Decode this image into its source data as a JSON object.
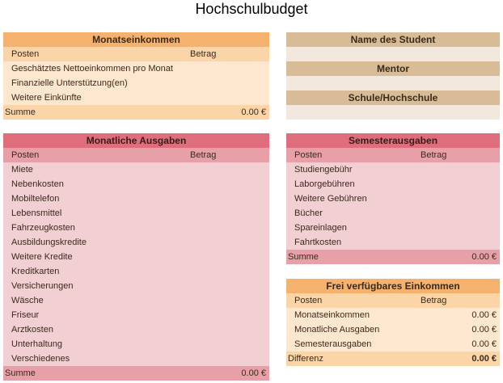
{
  "title": "Hochschulbudget",
  "income": {
    "header": "Monatseinkommen",
    "col_item": "Posten",
    "col_amount": "Betrag",
    "rows": [
      "Geschätztes Nettoeinkommen pro Monat",
      "Finanzielle Unterstützung(en)",
      "Weitere Einkünfte"
    ],
    "sum_label": "Summe",
    "sum_value": "0.00 €"
  },
  "info": {
    "student_label": "Name des Student",
    "mentor_label": "Mentor",
    "school_label": "Schule/Hochschule"
  },
  "expenses": {
    "header": "Monatliche Ausgaben",
    "col_item": "Posten",
    "col_amount": "Betrag",
    "rows": [
      "Miete",
      "Nebenkosten",
      "Mobiltelefon",
      "Lebensmittel",
      "Fahrzeugkosten",
      "Ausbildungskredite",
      "Weitere Kredite",
      "Kreditkarten",
      "Versicherungen",
      "Wäsche",
      "Friseur",
      "Arztkosten",
      "Unterhaltung",
      "Verschiedenes"
    ],
    "sum_label": "Summe",
    "sum_value": "0.00 €"
  },
  "semester": {
    "header": "Semesterausgaben",
    "col_item": "Posten",
    "col_amount": "Betrag",
    "rows": [
      "Studiengebühr",
      "Laborgebühren",
      "Weitere Gebühren",
      "Bücher",
      "Spareinlagen",
      "Fahrtkosten"
    ],
    "sum_label": "Summe",
    "sum_value": "0.00 €"
  },
  "disposable": {
    "header": "Frei verfügbares Einkommen",
    "col_item": "Posten",
    "col_amount": "Betrag",
    "rows": [
      {
        "label": "Monatseinkommen",
        "value": "0.00 €"
      },
      {
        "label": "Monatliche Ausgaben",
        "value": "0.00 €"
      },
      {
        "label": "Semesterausgaben",
        "value": "0.00 €"
      }
    ],
    "diff_label": "Differenz",
    "diff_value": "0.00 €"
  }
}
